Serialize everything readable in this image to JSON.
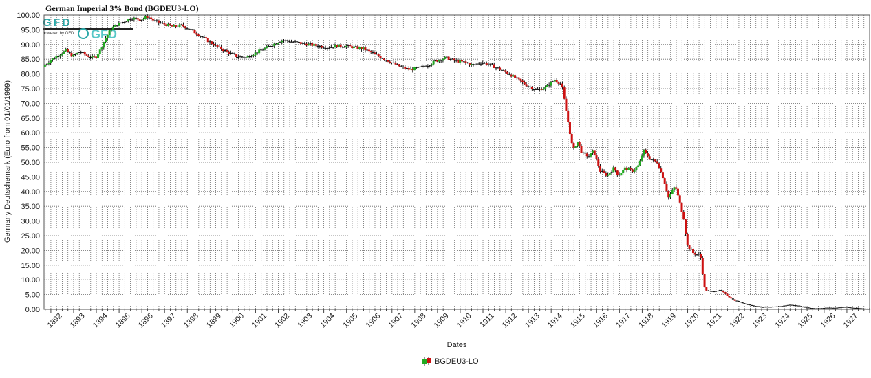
{
  "chart_data": {
    "type": "candlestick",
    "title": "German Imperial 3% Bond   (BGDEU3-LO)",
    "xlabel": "Dates",
    "ylabel": "Germany Deutschemark (Euro from 01/01/1999)",
    "ylim": [
      0,
      100
    ],
    "y_ticks": [
      "0.00",
      "5.00",
      "10.00",
      "15.00",
      "20.00",
      "25.00",
      "30.00",
      "35.00",
      "40.00",
      "45.00",
      "50.00",
      "55.00",
      "60.00",
      "65.00",
      "70.00",
      "75.00",
      "80.00",
      "85.00",
      "90.00",
      "95.00",
      "100.00"
    ],
    "x_range": [
      1891.7,
      1928.0
    ],
    "x_ticks": [
      "1892",
      "1893",
      "1894",
      "1895",
      "1896",
      "1897",
      "1898",
      "1899",
      "1900",
      "1901",
      "1902",
      "1903",
      "1904",
      "1905",
      "1906",
      "1907",
      "1908",
      "1909",
      "1910",
      "1911",
      "1912",
      "1913",
      "1914",
      "1915",
      "1916",
      "1917",
      "1918",
      "1919",
      "1920",
      "1921",
      "1922",
      "1923",
      "1924",
      "1925",
      "1926",
      "1927"
    ],
    "grid": true,
    "legend_position": "bottom-center",
    "series": [
      {
        "name": "BGDEU3-LO",
        "up_color": "#22aa22",
        "down_color": "#cc1111",
        "flat_color": "#111111",
        "points": [
          [
            1891.7,
            82.5
          ],
          [
            1892.0,
            84.5
          ],
          [
            1892.4,
            86.5
          ],
          [
            1892.7,
            88.0
          ],
          [
            1893.0,
            86.0
          ],
          [
            1893.3,
            87.5
          ],
          [
            1893.7,
            86.0
          ],
          [
            1894.0,
            85.5
          ],
          [
            1894.2,
            88.0
          ],
          [
            1894.4,
            91.5
          ],
          [
            1894.7,
            95.5
          ],
          [
            1895.0,
            97.0
          ],
          [
            1895.3,
            98.0
          ],
          [
            1895.6,
            99.0
          ],
          [
            1896.0,
            98.5
          ],
          [
            1896.3,
            99.5
          ],
          [
            1896.6,
            98.0
          ],
          [
            1897.0,
            97.0
          ],
          [
            1897.4,
            96.0
          ],
          [
            1897.8,
            96.5
          ],
          [
            1898.2,
            95.0
          ],
          [
            1898.6,
            93.0
          ],
          [
            1899.0,
            91.0
          ],
          [
            1899.4,
            89.0
          ],
          [
            1899.8,
            87.5
          ],
          [
            1900.2,
            86.0
          ],
          [
            1900.6,
            85.5
          ],
          [
            1901.0,
            87.0
          ],
          [
            1901.4,
            88.5
          ],
          [
            1901.8,
            90.0
          ],
          [
            1902.2,
            91.5
          ],
          [
            1902.6,
            91.0
          ],
          [
            1903.0,
            90.5
          ],
          [
            1903.4,
            90.0
          ],
          [
            1903.8,
            89.5
          ],
          [
            1904.2,
            89.0
          ],
          [
            1904.6,
            89.5
          ],
          [
            1905.0,
            89.5
          ],
          [
            1905.4,
            89.0
          ],
          [
            1905.8,
            88.5
          ],
          [
            1906.2,
            87.0
          ],
          [
            1906.6,
            85.5
          ],
          [
            1907.0,
            84.0
          ],
          [
            1907.4,
            82.5
          ],
          [
            1907.8,
            81.5
          ],
          [
            1908.2,
            82.0
          ],
          [
            1908.6,
            83.0
          ],
          [
            1909.0,
            84.5
          ],
          [
            1909.4,
            85.5
          ],
          [
            1909.8,
            84.5
          ],
          [
            1910.2,
            84.0
          ],
          [
            1910.6,
            83.0
          ],
          [
            1911.0,
            84.0
          ],
          [
            1911.4,
            83.0
          ],
          [
            1911.8,
            81.5
          ],
          [
            1912.2,
            80.0
          ],
          [
            1912.6,
            78.0
          ],
          [
            1913.0,
            76.0
          ],
          [
            1913.4,
            74.5
          ],
          [
            1913.8,
            75.5
          ],
          [
            1914.2,
            78.0
          ],
          [
            1914.5,
            76.5
          ],
          [
            1914.6,
            72.0
          ],
          [
            1915.0,
            54.0
          ],
          [
            1915.2,
            57.0
          ],
          [
            1915.4,
            53.0
          ],
          [
            1915.7,
            52.0
          ],
          [
            1915.9,
            54.0
          ],
          [
            1916.2,
            47.0
          ],
          [
            1916.5,
            45.5
          ],
          [
            1916.8,
            48.0
          ],
          [
            1917.0,
            45.5
          ],
          [
            1917.3,
            48.0
          ],
          [
            1917.6,
            47.0
          ],
          [
            1917.9,
            49.0
          ],
          [
            1918.1,
            54.0
          ],
          [
            1918.4,
            51.0
          ],
          [
            1918.7,
            50.0
          ],
          [
            1919.0,
            44.0
          ],
          [
            1919.2,
            38.0
          ],
          [
            1919.5,
            42.0
          ],
          [
            1919.7,
            36.0
          ],
          [
            1919.9,
            30.0
          ],
          [
            1920.0,
            22.0
          ],
          [
            1920.3,
            19.0
          ],
          [
            1920.6,
            18.5
          ],
          [
            1920.8,
            6.5
          ],
          [
            1921.1,
            6.0
          ],
          [
            1921.5,
            6.5
          ],
          [
            1921.8,
            4.5
          ],
          [
            1922.1,
            3.0
          ],
          [
            1922.5,
            2.0
          ],
          [
            1922.9,
            1.2
          ],
          [
            1923.3,
            0.8
          ],
          [
            1923.7,
            0.8
          ],
          [
            1924.1,
            1.0
          ],
          [
            1924.5,
            1.5
          ],
          [
            1924.9,
            1.2
          ],
          [
            1925.3,
            0.5
          ],
          [
            1925.7,
            0.3
          ],
          [
            1926.1,
            0.5
          ],
          [
            1926.5,
            0.5
          ],
          [
            1926.9,
            0.8
          ],
          [
            1927.3,
            0.5
          ],
          [
            1927.6,
            0.3
          ],
          [
            1927.9,
            0.2
          ]
        ]
      }
    ]
  },
  "watermark": {
    "brand": "GFD",
    "tagline": "powered by GFD"
  }
}
